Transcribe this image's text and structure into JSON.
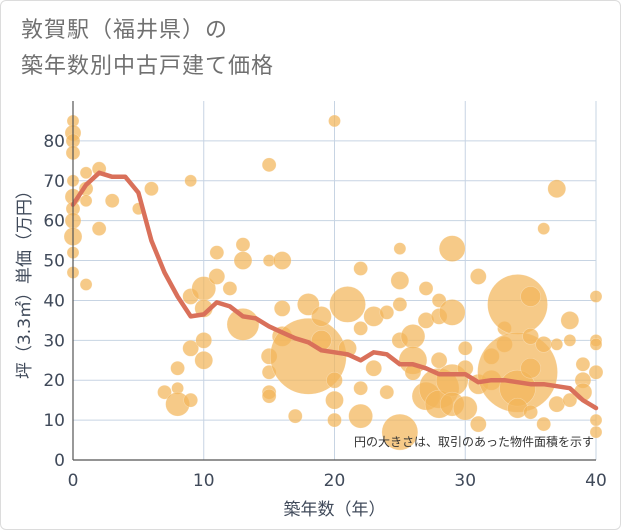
{
  "title": {
    "line1": "敦賀駅（福井県）の",
    "line2": "築年数別中古戸建て価格"
  },
  "colors": {
    "bubble": "#f2b65a",
    "line": "#d9705a",
    "grid": "#c7d4e3",
    "text": "#404a5a"
  },
  "chart_data": {
    "type": "scatter",
    "title": "敦賀駅（福井県）の築年数別中古戸建て価格",
    "xlabel": "築年数（年）",
    "ylabel": "坪（3.3㎡）単価（万円）",
    "xlim": [
      0,
      40
    ],
    "ylim": [
      0,
      90
    ],
    "xticks": [
      0,
      10,
      20,
      30,
      40
    ],
    "yticks": [
      0,
      10,
      20,
      30,
      40,
      50,
      60,
      70,
      80
    ],
    "grid": true,
    "note": "円の大きさは、取引のあった物件面積を示す",
    "points": [
      {
        "x": 0,
        "y": 85,
        "s": 6
      },
      {
        "x": 0,
        "y": 82,
        "s": 8
      },
      {
        "x": 0,
        "y": 80,
        "s": 7
      },
      {
        "x": 0,
        "y": 77,
        "s": 7
      },
      {
        "x": 0,
        "y": 70,
        "s": 6
      },
      {
        "x": 0,
        "y": 66,
        "s": 8
      },
      {
        "x": 0,
        "y": 63,
        "s": 7
      },
      {
        "x": 0,
        "y": 60,
        "s": 8
      },
      {
        "x": 0,
        "y": 56,
        "s": 9
      },
      {
        "x": 0,
        "y": 52,
        "s": 6
      },
      {
        "x": 0,
        "y": 47,
        "s": 6
      },
      {
        "x": 1,
        "y": 72,
        "s": 6
      },
      {
        "x": 1,
        "y": 68,
        "s": 7
      },
      {
        "x": 1,
        "y": 65,
        "s": 6
      },
      {
        "x": 1,
        "y": 44,
        "s": 6
      },
      {
        "x": 2,
        "y": 73,
        "s": 7
      },
      {
        "x": 2,
        "y": 58,
        "s": 7
      },
      {
        "x": 3,
        "y": 65,
        "s": 7
      },
      {
        "x": 5,
        "y": 63,
        "s": 6
      },
      {
        "x": 6,
        "y": 68,
        "s": 7
      },
      {
        "x": 7,
        "y": 17,
        "s": 7
      },
      {
        "x": 8,
        "y": 23,
        "s": 7
      },
      {
        "x": 8,
        "y": 18,
        "s": 6
      },
      {
        "x": 8,
        "y": 14,
        "s": 12
      },
      {
        "x": 9,
        "y": 70,
        "s": 6
      },
      {
        "x": 9,
        "y": 41,
        "s": 8
      },
      {
        "x": 9,
        "y": 28,
        "s": 8
      },
      {
        "x": 9,
        "y": 15,
        "s": 7
      },
      {
        "x": 10,
        "y": 43,
        "s": 12
      },
      {
        "x": 10,
        "y": 38,
        "s": 9
      },
      {
        "x": 10,
        "y": 30,
        "s": 8
      },
      {
        "x": 10,
        "y": 25,
        "s": 9
      },
      {
        "x": 11,
        "y": 52,
        "s": 7
      },
      {
        "x": 11,
        "y": 46,
        "s": 8
      },
      {
        "x": 12,
        "y": 43,
        "s": 7
      },
      {
        "x": 13,
        "y": 54,
        "s": 7
      },
      {
        "x": 13,
        "y": 50,
        "s": 9
      },
      {
        "x": 13,
        "y": 34,
        "s": 16
      },
      {
        "x": 15,
        "y": 74,
        "s": 7
      },
      {
        "x": 15,
        "y": 50,
        "s": 6
      },
      {
        "x": 15,
        "y": 26,
        "s": 8
      },
      {
        "x": 15,
        "y": 22,
        "s": 7
      },
      {
        "x": 15,
        "y": 17,
        "s": 7
      },
      {
        "x": 15,
        "y": 16,
        "s": 7
      },
      {
        "x": 16,
        "y": 50,
        "s": 9
      },
      {
        "x": 16,
        "y": 38,
        "s": 8
      },
      {
        "x": 16,
        "y": 31,
        "s": 10
      },
      {
        "x": 17,
        "y": 11,
        "s": 7
      },
      {
        "x": 18,
        "y": 39,
        "s": 11
      },
      {
        "x": 18,
        "y": 26,
        "s": 38
      },
      {
        "x": 19,
        "y": 36,
        "s": 10
      },
      {
        "x": 19,
        "y": 30,
        "s": 10
      },
      {
        "x": 20,
        "y": 85,
        "s": 6
      },
      {
        "x": 20,
        "y": 20,
        "s": 8
      },
      {
        "x": 20,
        "y": 15,
        "s": 9
      },
      {
        "x": 20,
        "y": 10,
        "s": 7
      },
      {
        "x": 21,
        "y": 39,
        "s": 18
      },
      {
        "x": 21,
        "y": 28,
        "s": 9
      },
      {
        "x": 22,
        "y": 48,
        "s": 7
      },
      {
        "x": 22,
        "y": 33,
        "s": 7
      },
      {
        "x": 22,
        "y": 18,
        "s": 7
      },
      {
        "x": 22,
        "y": 11,
        "s": 12
      },
      {
        "x": 23,
        "y": 36,
        "s": 10
      },
      {
        "x": 23,
        "y": 23,
        "s": 8
      },
      {
        "x": 24,
        "y": 37,
        "s": 7
      },
      {
        "x": 24,
        "y": 17,
        "s": 7
      },
      {
        "x": 25,
        "y": 53,
        "s": 6
      },
      {
        "x": 25,
        "y": 45,
        "s": 9
      },
      {
        "x": 25,
        "y": 39,
        "s": 7
      },
      {
        "x": 25,
        "y": 30,
        "s": 8
      },
      {
        "x": 25,
        "y": 7,
        "s": 18
      },
      {
        "x": 26,
        "y": 31,
        "s": 12
      },
      {
        "x": 26,
        "y": 25,
        "s": 14
      },
      {
        "x": 26,
        "y": 22,
        "s": 8
      },
      {
        "x": 27,
        "y": 43,
        "s": 7
      },
      {
        "x": 27,
        "y": 35,
        "s": 8
      },
      {
        "x": 27,
        "y": 16,
        "s": 14
      },
      {
        "x": 28,
        "y": 40,
        "s": 7
      },
      {
        "x": 28,
        "y": 36,
        "s": 8
      },
      {
        "x": 28,
        "y": 25,
        "s": 8
      },
      {
        "x": 28,
        "y": 18,
        "s": 20
      },
      {
        "x": 28,
        "y": 14,
        "s": 14
      },
      {
        "x": 29,
        "y": 53,
        "s": 13
      },
      {
        "x": 29,
        "y": 37,
        "s": 13
      },
      {
        "x": 29,
        "y": 20,
        "s": 16
      },
      {
        "x": 29,
        "y": 14,
        "s": 12
      },
      {
        "x": 30,
        "y": 28,
        "s": 7
      },
      {
        "x": 30,
        "y": 23,
        "s": 8
      },
      {
        "x": 30,
        "y": 13,
        "s": 12
      },
      {
        "x": 31,
        "y": 46,
        "s": 8
      },
      {
        "x": 31,
        "y": 19,
        "s": 10
      },
      {
        "x": 31,
        "y": 9,
        "s": 8
      },
      {
        "x": 32,
        "y": 26,
        "s": 8
      },
      {
        "x": 32,
        "y": 20,
        "s": 10
      },
      {
        "x": 33,
        "y": 33,
        "s": 7
      },
      {
        "x": 33,
        "y": 29,
        "s": 8
      },
      {
        "x": 34,
        "y": 39,
        "s": 30
      },
      {
        "x": 34,
        "y": 22,
        "s": 40
      },
      {
        "x": 34,
        "y": 18,
        "s": 18
      },
      {
        "x": 34,
        "y": 13,
        "s": 10
      },
      {
        "x": 35,
        "y": 41,
        "s": 10
      },
      {
        "x": 35,
        "y": 31,
        "s": 8
      },
      {
        "x": 35,
        "y": 23,
        "s": 10
      },
      {
        "x": 35,
        "y": 12,
        "s": 7
      },
      {
        "x": 36,
        "y": 58,
        "s": 6
      },
      {
        "x": 36,
        "y": 29,
        "s": 8
      },
      {
        "x": 36,
        "y": 9,
        "s": 7
      },
      {
        "x": 37,
        "y": 68,
        "s": 9
      },
      {
        "x": 37,
        "y": 29,
        "s": 6
      },
      {
        "x": 37,
        "y": 14,
        "s": 8
      },
      {
        "x": 38,
        "y": 35,
        "s": 9
      },
      {
        "x": 38,
        "y": 30,
        "s": 6
      },
      {
        "x": 38,
        "y": 15,
        "s": 7
      },
      {
        "x": 39,
        "y": 24,
        "s": 7
      },
      {
        "x": 39,
        "y": 20,
        "s": 8
      },
      {
        "x": 39,
        "y": 17,
        "s": 9
      },
      {
        "x": 40,
        "y": 41,
        "s": 6
      },
      {
        "x": 40,
        "y": 30,
        "s": 6
      },
      {
        "x": 40,
        "y": 29,
        "s": 6
      },
      {
        "x": 40,
        "y": 22,
        "s": 7
      },
      {
        "x": 40,
        "y": 10,
        "s": 6
      },
      {
        "x": 40,
        "y": 7,
        "s": 6
      }
    ],
    "series": [
      {
        "name": "trend",
        "x": [
          0,
          1,
          2,
          3,
          4,
          5,
          6,
          7,
          8,
          9,
          10,
          11,
          12,
          13,
          14,
          15,
          16,
          17,
          18,
          19,
          20,
          21,
          22,
          23,
          24,
          25,
          26,
          27,
          28,
          29,
          30,
          31,
          32,
          33,
          34,
          35,
          36,
          37,
          38,
          39,
          40
        ],
        "values": [
          64,
          69,
          72,
          71,
          71,
          67,
          55,
          47,
          41,
          36,
          36.5,
          39.5,
          38.5,
          36,
          35.5,
          33.5,
          32,
          30.5,
          29.5,
          27.5,
          27,
          26.5,
          25,
          27,
          26.5,
          24,
          24,
          23,
          21.5,
          21.5,
          21.5,
          19.5,
          20,
          20,
          19.5,
          19,
          19,
          18.5,
          18,
          15,
          13
        ]
      }
    ]
  }
}
